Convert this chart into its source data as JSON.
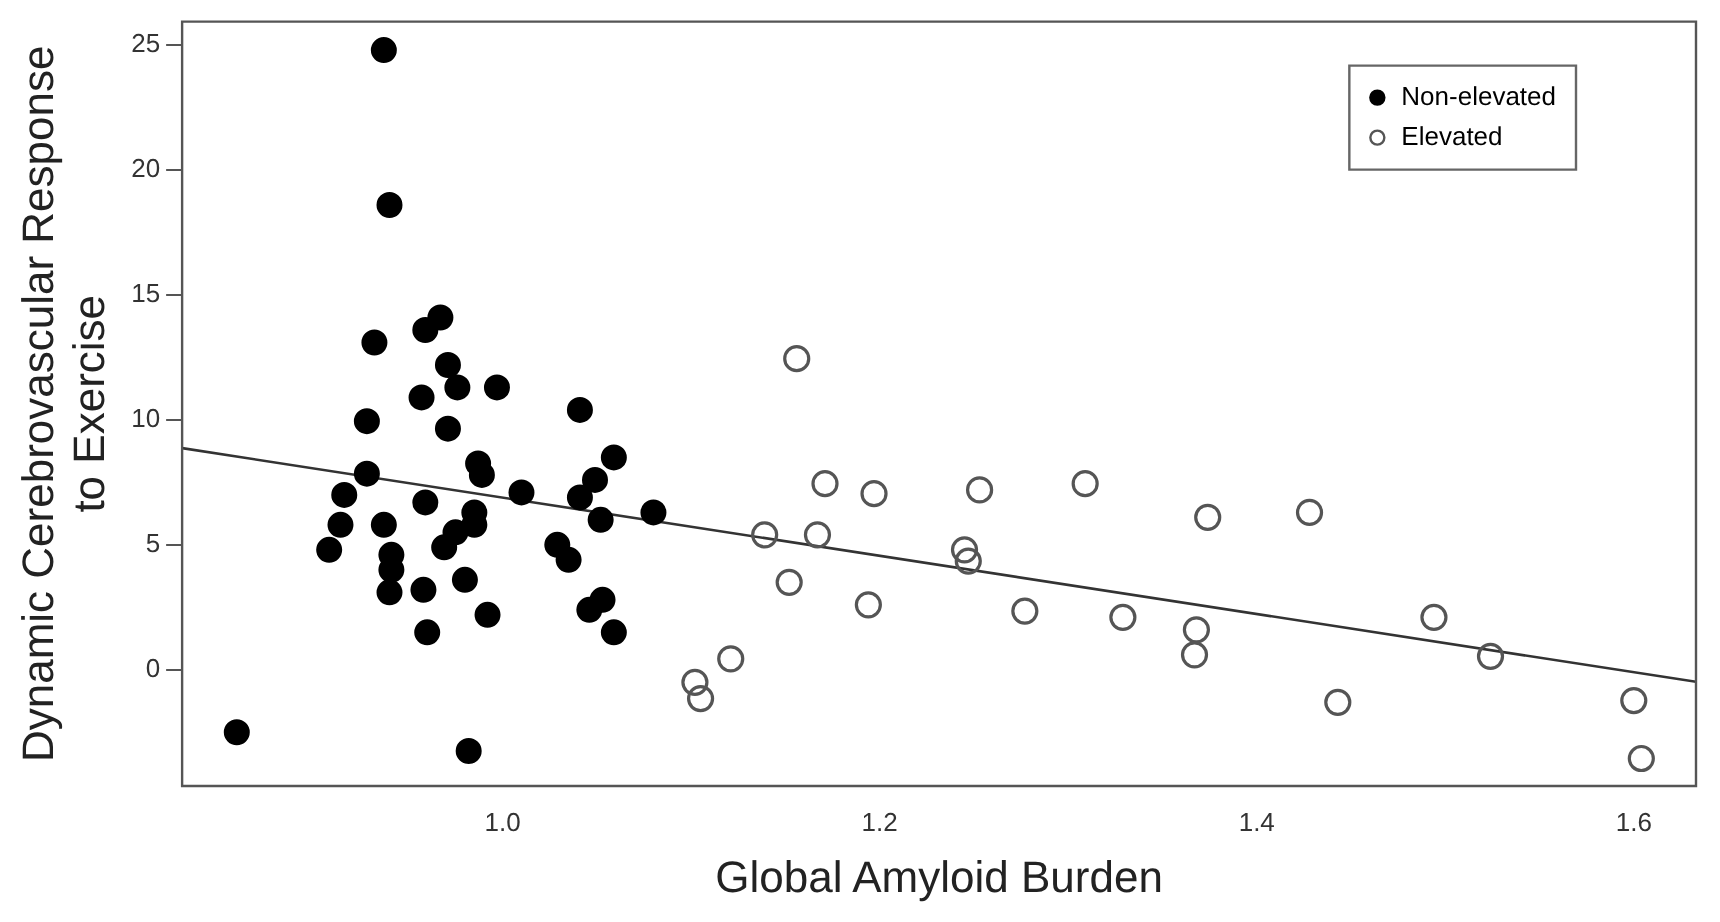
{
  "chart_data": {
    "type": "scatter",
    "xlabel": "Global Amyloid Burden",
    "ylabel": "Dynamic Cerebrovascular Response to Exercise",
    "xlim": [
      0.83,
      1.633
    ],
    "ylim": [
      -4.65,
      25.94
    ],
    "xticks": [
      {
        "value": 1,
        "label": "1.0"
      },
      {
        "value": 1.2,
        "label": "1.2"
      },
      {
        "value": 1.4,
        "label": "1.4"
      },
      {
        "value": 1.6,
        "label": "1.6"
      }
    ],
    "yticks": [
      0,
      5,
      10,
      15,
      20,
      25
    ],
    "grid": false,
    "legend": "top right",
    "marker": "circle",
    "series": [
      {
        "name": "Non-elevated",
        "color": "#000000",
        "x": [
          0.937,
          0.94,
          0.932,
          0.959,
          0.967,
          0.971,
          0.976,
          0.997,
          0.957,
          0.928,
          0.971,
          1.041,
          0.928,
          0.987,
          0.989,
          1.059,
          1.049,
          1.01,
          1.041,
          1.08,
          0.916,
          0.959,
          0.914,
          0.937,
          0.985,
          0.975,
          0.985,
          1.052,
          0.908,
          0.969,
          0.941,
          0.941,
          1.029,
          1.035,
          0.94,
          0.958,
          0.98,
          1.053,
          1.046,
          0.992,
          0.96,
          1.059,
          0.859,
          0.982
        ],
        "values": [
          24.8,
          18.6,
          13.1,
          13.6,
          14.1,
          12.2,
          11.3,
          11.3,
          10.9,
          9.95,
          9.65,
          10.4,
          7.85,
          8.26,
          7.8,
          8.5,
          7.6,
          7.1,
          6.9,
          6.3,
          7.0,
          6.7,
          5.8,
          5.8,
          6.3,
          5.5,
          5.8,
          6.0,
          4.8,
          4.9,
          4.6,
          4.0,
          5.0,
          4.4,
          3.1,
          3.2,
          3.6,
          2.8,
          2.4,
          2.2,
          1.5,
          1.5,
          -2.5,
          -3.25
        ]
      },
      {
        "name": "Elevated",
        "color": "#555555",
        "x": [
          1.156,
          1.171,
          1.197,
          1.253,
          1.309,
          1.139,
          1.167,
          1.245,
          1.247,
          1.152,
          1.194,
          1.277,
          1.329,
          1.121,
          1.102,
          1.105,
          1.374,
          1.428,
          1.494,
          1.368,
          1.367,
          1.524,
          1.443,
          1.6,
          1.604
        ],
        "values": [
          12.45,
          7.45,
          7.05,
          7.2,
          7.45,
          5.4,
          5.4,
          4.8,
          4.35,
          3.5,
          2.6,
          2.35,
          2.1,
          0.44,
          -0.5,
          -1.15,
          6.1,
          6.3,
          2.1,
          1.6,
          0.6,
          0.54,
          -1.3,
          -1.23,
          -3.55
        ]
      },
      {
        "type": "line",
        "color": "#333333",
        "marker": "none",
        "x": [
          0.83,
          1.633
        ],
        "values": [
          8.87,
          -0.48
        ]
      }
    ]
  }
}
